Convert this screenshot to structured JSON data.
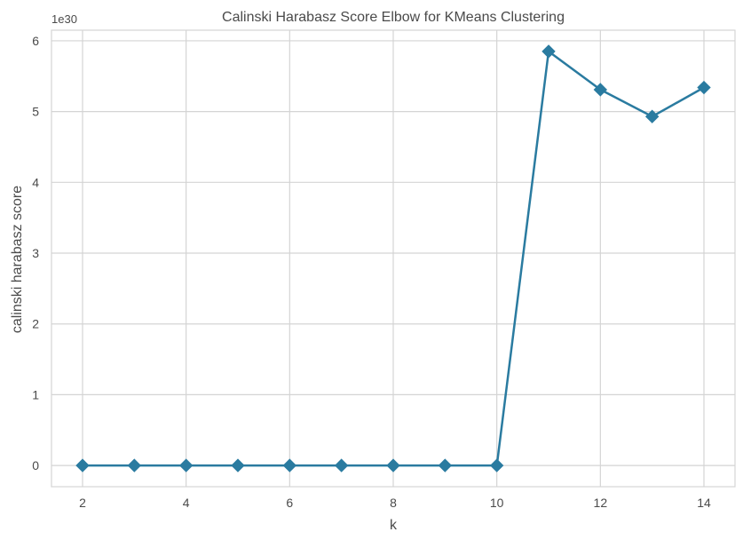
{
  "chart_data": {
    "type": "line",
    "title": "Calinski Harabasz Score Elbow for KMeans Clustering",
    "xlabel": "k",
    "ylabel": "calinski harabasz score",
    "y_offset_label": "1e30",
    "x": [
      2,
      3,
      4,
      5,
      6,
      7,
      8,
      9,
      10,
      11,
      12,
      13,
      14
    ],
    "y": [
      0,
      0,
      0,
      0,
      0,
      0,
      0,
      0,
      0,
      5.85,
      5.31,
      4.93,
      5.34
    ],
    "y_scale_factor": "1e30",
    "xlim": [
      1.4,
      14.6
    ],
    "ylim": [
      -0.3,
      6.15
    ],
    "xticks": [
      2,
      4,
      6,
      8,
      10,
      12,
      14
    ],
    "yticks": [
      0,
      1,
      2,
      3,
      4,
      5,
      6
    ],
    "grid": true,
    "marker": "diamond",
    "colors": {
      "line": "#2a7ba0",
      "grid": "#d4d4d4",
      "frame": "#d4d4d4",
      "text": "#4a4a4a"
    }
  }
}
